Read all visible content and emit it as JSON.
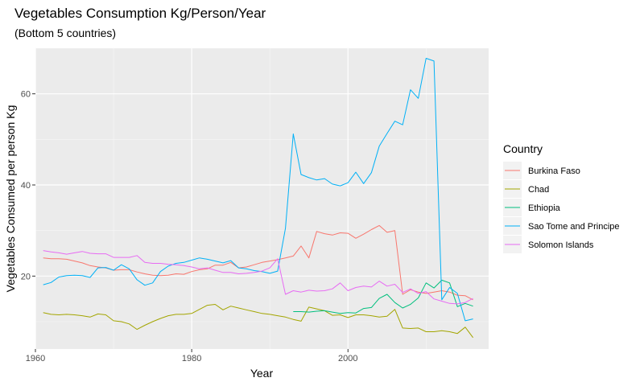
{
  "chart_data": {
    "type": "line",
    "title": "Vegetables Consumption Kg/Person/Year",
    "subtitle": "(Bottom 5 countries)",
    "xlabel": "Year",
    "ylabel": "Vegetables Consumed per person Kg",
    "xlim": [
      1960,
      2018
    ],
    "ylim": [
      4,
      70
    ],
    "xticks": [
      1960,
      1980,
      2000
    ],
    "yticks": [
      20,
      40,
      60
    ],
    "grid": true,
    "legend": {
      "title": "Country",
      "position": "right"
    },
    "colors": {
      "Burkina Faso": "#F8766D",
      "Chad": "#A3A500",
      "Ethiopia": "#00BF7D",
      "Sao Tome and Principe": "#00B0F6",
      "Solomon Islands": "#E76BF3"
    },
    "series": [
      {
        "name": "Burkina Faso",
        "x": [
          1961,
          1962,
          1963,
          1964,
          1965,
          1966,
          1967,
          1968,
          1969,
          1970,
          1971,
          1972,
          1973,
          1974,
          1975,
          1976,
          1977,
          1978,
          1979,
          1980,
          1981,
          1982,
          1983,
          1984,
          1985,
          1986,
          1987,
          1988,
          1989,
          1990,
          1991,
          1992,
          1993,
          1994,
          1995,
          1996,
          1997,
          1998,
          1999,
          2000,
          2001,
          2002,
          2003,
          2004,
          2005,
          2006,
          2007,
          2008,
          2009,
          2010,
          2011,
          2012,
          2013,
          2014,
          2015,
          2016
        ],
        "y": [
          24,
          23.8,
          23.8,
          23.7,
          23.3,
          22.9,
          22.3,
          22,
          21.8,
          21.3,
          21.4,
          21.4,
          20.9,
          20.5,
          20.2,
          20.1,
          20.2,
          20.5,
          20.4,
          21,
          21.4,
          21.6,
          22.4,
          22.4,
          23,
          21.8,
          22,
          22.5,
          23,
          23.3,
          23.6,
          24,
          24.4,
          26.6,
          24,
          29.8,
          29.3,
          29,
          29.5,
          29.4,
          28.3,
          29.2,
          30.2,
          31.1,
          29.6,
          30,
          16,
          17,
          16.5,
          16.2,
          16.5,
          16.8,
          16.5,
          15.8,
          15.7,
          14.8
        ]
      },
      {
        "name": "Chad",
        "x": [
          1961,
          1962,
          1963,
          1964,
          1965,
          1966,
          1967,
          1968,
          1969,
          1970,
          1971,
          1972,
          1973,
          1974,
          1975,
          1976,
          1977,
          1978,
          1979,
          1980,
          1981,
          1982,
          1983,
          1984,
          1985,
          1986,
          1987,
          1988,
          1989,
          1990,
          1991,
          1992,
          1993,
          1994,
          1995,
          1996,
          1997,
          1998,
          1999,
          2000,
          2001,
          2002,
          2003,
          2004,
          2005,
          2006,
          2007,
          2008,
          2009,
          2010,
          2011,
          2012,
          2013,
          2014,
          2015,
          2016
        ],
        "y": [
          12,
          11.6,
          11.5,
          11.6,
          11.5,
          11.3,
          11,
          11.7,
          11.5,
          10.2,
          10,
          9.5,
          8.3,
          9.2,
          10,
          10.7,
          11.3,
          11.6,
          11.6,
          11.8,
          12.7,
          13.6,
          13.8,
          12.6,
          13.4,
          13,
          12.6,
          12.2,
          11.8,
          11.6,
          11.3,
          11,
          10.5,
          10.1,
          13.2,
          12.8,
          12.4,
          11.4,
          11.5,
          10.9,
          11.5,
          11.5,
          11.3,
          11,
          11.2,
          12.7,
          8.6,
          8.5,
          8.6,
          7.8,
          7.8,
          8,
          7.8,
          7.4,
          8.8,
          6.5
        ]
      },
      {
        "name": "Ethiopia",
        "x": [
          1993,
          1994,
          1995,
          1996,
          1997,
          1998,
          1999,
          2000,
          2001,
          2002,
          2003,
          2004,
          2005,
          2006,
          2007,
          2008,
          2009,
          2010,
          2011,
          2012,
          2013,
          2014,
          2015,
          2016
        ],
        "y": [
          12.2,
          12.2,
          12.1,
          12.3,
          12.4,
          12.1,
          11.8,
          12,
          11.9,
          12.9,
          13.1,
          15.1,
          16,
          14.2,
          13,
          13.8,
          15.2,
          18.5,
          17.4,
          19.1,
          18.5,
          13.3,
          14,
          13.4
        ]
      },
      {
        "name": "Sao Tome and Principe",
        "x": [
          1961,
          1962,
          1963,
          1964,
          1965,
          1966,
          1967,
          1968,
          1969,
          1970,
          1971,
          1972,
          1973,
          1974,
          1975,
          1976,
          1977,
          1978,
          1979,
          1980,
          1981,
          1982,
          1983,
          1984,
          1985,
          1986,
          1987,
          1988,
          1989,
          1990,
          1991,
          1992,
          1993,
          1994,
          1995,
          1996,
          1997,
          1998,
          1999,
          2000,
          2001,
          2002,
          2003,
          2004,
          2005,
          2006,
          2007,
          2008,
          2009,
          2010,
          2011,
          2012,
          2013,
          2014,
          2015,
          2016
        ],
        "y": [
          18.1,
          18.6,
          19.8,
          20.1,
          20.2,
          20.1,
          19.7,
          21.8,
          21.9,
          21.3,
          22.5,
          21.6,
          19.2,
          18,
          18.5,
          21,
          22.2,
          22.8,
          23,
          23.5,
          24,
          23.7,
          23.3,
          22.9,
          23.4,
          21.8,
          21.6,
          21.2,
          21,
          20.6,
          21.1,
          30.5,
          51.2,
          42.3,
          41.6,
          41.1,
          41.4,
          40.2,
          39.8,
          40.5,
          42.8,
          40.3,
          42.7,
          48.5,
          51.3,
          54,
          53.2,
          60.9,
          59,
          67.8,
          67.2,
          14.8,
          17.5,
          16.2,
          10.2,
          10.6
        ]
      },
      {
        "name": "Solomon Islands",
        "x": [
          1961,
          1962,
          1963,
          1964,
          1965,
          1966,
          1967,
          1968,
          1969,
          1970,
          1971,
          1972,
          1973,
          1974,
          1975,
          1976,
          1977,
          1978,
          1979,
          1980,
          1981,
          1982,
          1983,
          1984,
          1985,
          1986,
          1987,
          1988,
          1989,
          1990,
          1991,
          1992,
          1993,
          1994,
          1995,
          1996,
          1997,
          1998,
          1999,
          2000,
          2001,
          2002,
          2003,
          2004,
          2005,
          2006,
          2007,
          2008,
          2009,
          2010,
          2011,
          2012,
          2013,
          2014,
          2015,
          2016
        ],
        "y": [
          25.6,
          25.3,
          25.1,
          24.8,
          25.1,
          25.4,
          25,
          24.9,
          24.9,
          24.1,
          24.1,
          24.1,
          24.5,
          23,
          22.8,
          22.8,
          22.6,
          22.5,
          22.3,
          22,
          21.6,
          21.8,
          21.3,
          20.8,
          20.8,
          20.5,
          20.6,
          20.8,
          21.1,
          21.8,
          23.8,
          16,
          16.8,
          16.5,
          16.9,
          16.7,
          16.8,
          17.2,
          18.5,
          16.8,
          17.5,
          17.8,
          17.6,
          18.9,
          17.8,
          18.2,
          16.4,
          17.2,
          16.2,
          16.6,
          15,
          14.5,
          14,
          13.9,
          14.2,
          15.1
        ]
      }
    ]
  }
}
